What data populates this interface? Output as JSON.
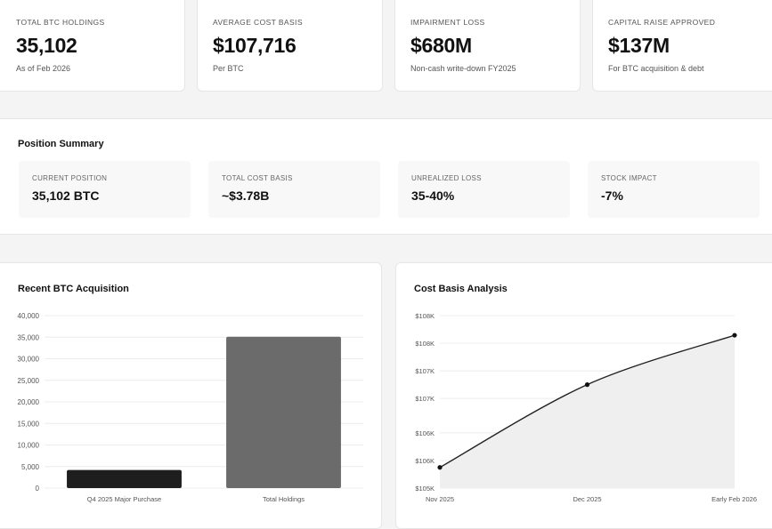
{
  "stats": [
    {
      "label": "TOTAL BTC HOLDINGS",
      "value": "35,102",
      "sub": "As of Feb 2026"
    },
    {
      "label": "AVERAGE COST BASIS",
      "value": "$107,716",
      "sub": "Per BTC"
    },
    {
      "label": "IMPAIRMENT LOSS",
      "value": "$680M",
      "sub": "Non-cash write-down FY2025"
    },
    {
      "label": "CAPITAL RAISE APPROVED",
      "value": "$137M",
      "sub": "For BTC acquisition & debt"
    }
  ],
  "position_summary": {
    "title": "Position Summary",
    "items": [
      {
        "label": "CURRENT POSITION",
        "value": "35,102 BTC"
      },
      {
        "label": "TOTAL COST BASIS",
        "value": "~$3.78B"
      },
      {
        "label": "UNREALIZED LOSS",
        "value": "35-40%"
      },
      {
        "label": "STOCK IMPACT",
        "value": "-7%"
      }
    ]
  },
  "acquisition_chart": {
    "title": "Recent BTC Acquisition"
  },
  "cost_basis_chart": {
    "title": "Cost Basis Analysis"
  },
  "chart_data": [
    {
      "type": "bar",
      "title": "Recent BTC Acquisition",
      "categories": [
        "Q4 2025 Major Purchase",
        "Total Holdings"
      ],
      "values": [
        4200,
        35102
      ],
      "ylim": [
        0,
        40000
      ],
      "yticks": [
        "0",
        "5,000",
        "10,000",
        "15,000",
        "20,000",
        "25,000",
        "30,000",
        "35,000",
        "40,000"
      ],
      "ytick_values": [
        0,
        5000,
        10000,
        15000,
        20000,
        25000,
        30000,
        35000,
        40000
      ],
      "colors": [
        "#1e1e1e",
        "#6b6b6b"
      ],
      "grid": true
    },
    {
      "type": "area",
      "title": "Cost Basis Analysis",
      "x": [
        "Nov 2025",
        "Dec 2025",
        "Early Feb 2026"
      ],
      "values": [
        105800,
        107000,
        107716
      ],
      "ylim": [
        105500,
        108000
      ],
      "yticks": [
        "$105K",
        "$106K",
        "$106K",
        "$107K",
        "$107K",
        "$108K",
        "$108K"
      ],
      "ytick_values": [
        105500,
        105900,
        106300,
        106800,
        107200,
        107600,
        108000
      ],
      "line_color": "#222222",
      "fill_color": "#efefef",
      "grid": true
    }
  ]
}
